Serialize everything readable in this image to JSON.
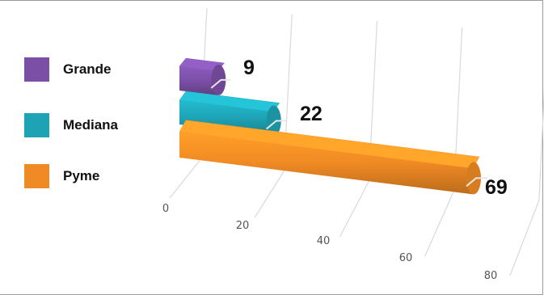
{
  "chart_data": {
    "type": "bar",
    "orientation": "horizontal",
    "style": "3d",
    "categories": [
      "Pyme",
      "Mediana",
      "Grande"
    ],
    "values": [
      69,
      22,
      9
    ],
    "data_labels": [
      "69",
      "22",
      "9"
    ],
    "xlim": [
      0,
      80
    ],
    "x_ticks": [
      "0",
      "20",
      "40",
      "60",
      "80"
    ],
    "grid": true,
    "legend": {
      "placement": "left",
      "items": [
        {
          "label": "Grande",
          "color": "#7b4fa6"
        },
        {
          "label": "Mediana",
          "color": "#1ea3b5"
        },
        {
          "label": "Pyme",
          "color": "#f08a24"
        }
      ]
    },
    "colors": {
      "Pyme": "#f08a24",
      "Mediana": "#1ea3b5",
      "Grande": "#7b4fa6"
    }
  }
}
